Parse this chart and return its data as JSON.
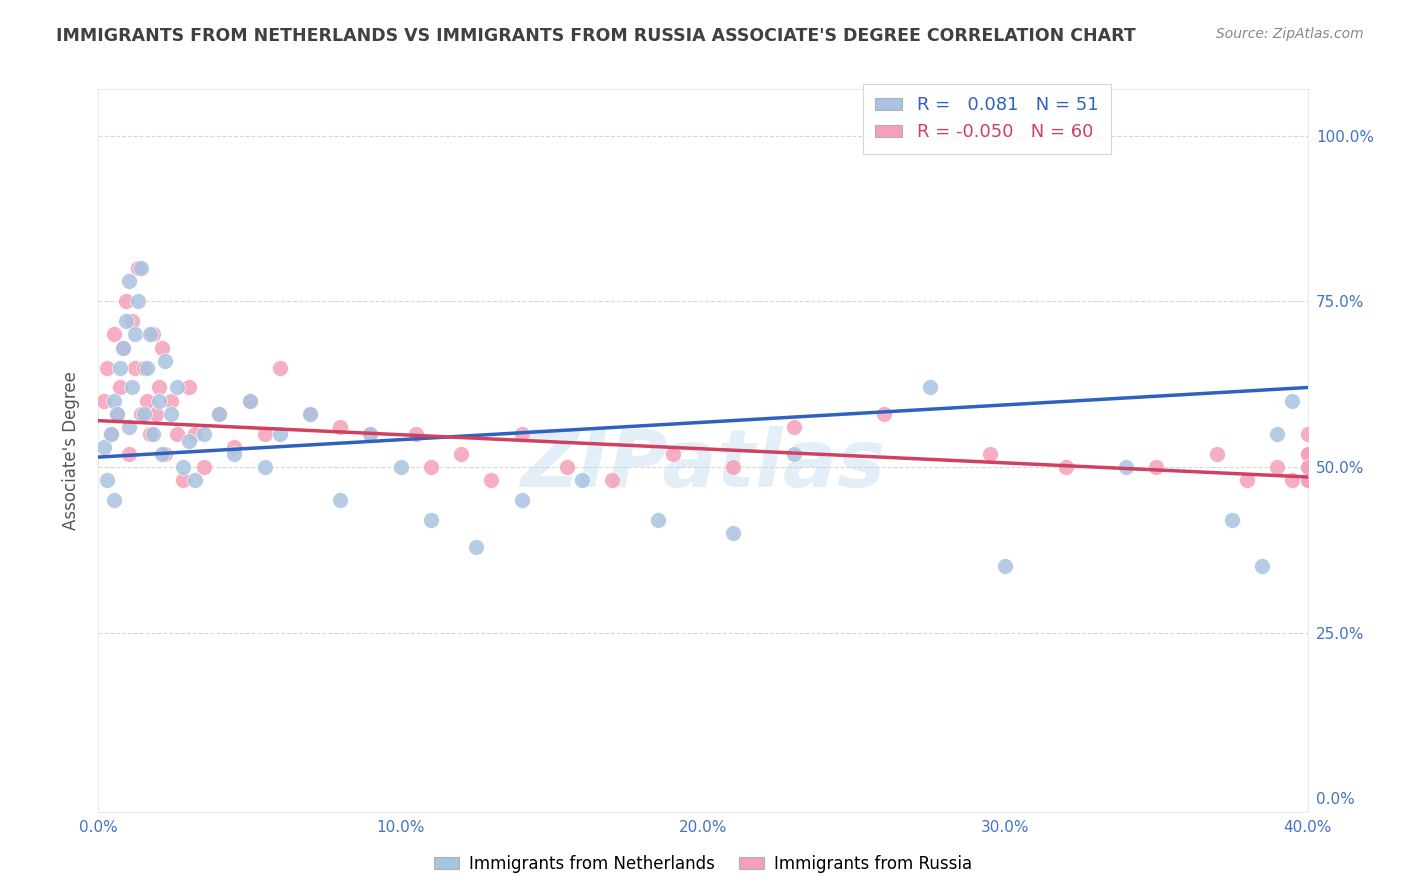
{
  "title": "IMMIGRANTS FROM NETHERLANDS VS IMMIGRANTS FROM RUSSIA ASSOCIATE'S DEGREE CORRELATION CHART",
  "source": "Source: ZipAtlas.com",
  "ylabel": "Associate's Degree",
  "ytick_labels": [
    "0.0%",
    "25.0%",
    "50.0%",
    "75.0%",
    "100.0%"
  ],
  "ytick_values": [
    0,
    25,
    50,
    75,
    100
  ],
  "xtick_values": [
    0,
    10,
    20,
    30,
    40
  ],
  "xtick_labels": [
    "0.0%",
    "10.0%",
    "20.0%",
    "30.0%",
    "40.0%"
  ],
  "xlim": [
    0,
    40
  ],
  "ylim": [
    -2,
    107
  ],
  "watermark": "ZIPatlas",
  "legend_r_blue": "0.081",
  "legend_n_blue": "51",
  "legend_r_pink": "-0.050",
  "legend_n_pink": "60",
  "blue_color": "#a8c4e0",
  "pink_color": "#f4a0b8",
  "blue_line_color": "#3060c0",
  "pink_line_color": "#d04060",
  "title_color": "#404040",
  "axis_tick_color": "#4472c4",
  "grid_color": "#d8d8d8",
  "nl_x": [
    0.2,
    0.3,
    0.4,
    0.5,
    0.5,
    0.6,
    0.7,
    0.8,
    0.9,
    1.0,
    1.0,
    1.1,
    1.2,
    1.3,
    1.4,
    1.5,
    1.6,
    1.7,
    1.8,
    2.0,
    2.1,
    2.2,
    2.4,
    2.6,
    2.8,
    3.0,
    3.2,
    3.5,
    4.0,
    4.5,
    5.0,
    5.5,
    6.0,
    7.0,
    8.0,
    9.0,
    10.0,
    11.0,
    12.5,
    14.0,
    16.0,
    18.5,
    21.0,
    23.0,
    27.5,
    30.0,
    34.0,
    37.5,
    38.5,
    39.0,
    39.5
  ],
  "nl_y": [
    53,
    48,
    55,
    60,
    45,
    58,
    65,
    68,
    72,
    56,
    78,
    62,
    70,
    75,
    80,
    58,
    65,
    70,
    55,
    60,
    52,
    66,
    58,
    62,
    50,
    54,
    48,
    55,
    58,
    52,
    60,
    50,
    55,
    58,
    45,
    55,
    50,
    42,
    38,
    45,
    48,
    42,
    40,
    52,
    62,
    35,
    50,
    42,
    35,
    55,
    60
  ],
  "ru_x": [
    0.2,
    0.3,
    0.4,
    0.5,
    0.6,
    0.7,
    0.8,
    0.9,
    1.0,
    1.1,
    1.2,
    1.3,
    1.4,
    1.5,
    1.6,
    1.7,
    1.8,
    1.9,
    2.0,
    2.1,
    2.2,
    2.4,
    2.6,
    2.8,
    3.0,
    3.2,
    3.5,
    4.0,
    4.5,
    5.0,
    5.5,
    6.0,
    7.0,
    8.0,
    9.0,
    10.5,
    11.0,
    12.0,
    13.0,
    14.0,
    15.5,
    17.0,
    19.0,
    21.0,
    23.0,
    26.0,
    29.5,
    32.0,
    35.0,
    37.0,
    38.0,
    39.0,
    39.5,
    40.0,
    40.0,
    40.0,
    40.0,
    40.0,
    40.0,
    40.0
  ],
  "ru_y": [
    60,
    65,
    55,
    70,
    58,
    62,
    68,
    75,
    52,
    72,
    65,
    80,
    58,
    65,
    60,
    55,
    70,
    58,
    62,
    68,
    52,
    60,
    55,
    48,
    62,
    55,
    50,
    58,
    53,
    60,
    55,
    65,
    58,
    56,
    55,
    55,
    50,
    52,
    48,
    55,
    50,
    48,
    52,
    50,
    56,
    58,
    52,
    50,
    50,
    52,
    48,
    50,
    48,
    52,
    55,
    48,
    50,
    52,
    48,
    50
  ],
  "nl_line_x0": 0,
  "nl_line_y0": 51.5,
  "nl_line_x1": 40,
  "nl_line_y1": 62.0,
  "ru_line_x0": 0,
  "ru_line_y0": 57.0,
  "ru_line_x1": 40,
  "ru_line_y1": 48.5
}
